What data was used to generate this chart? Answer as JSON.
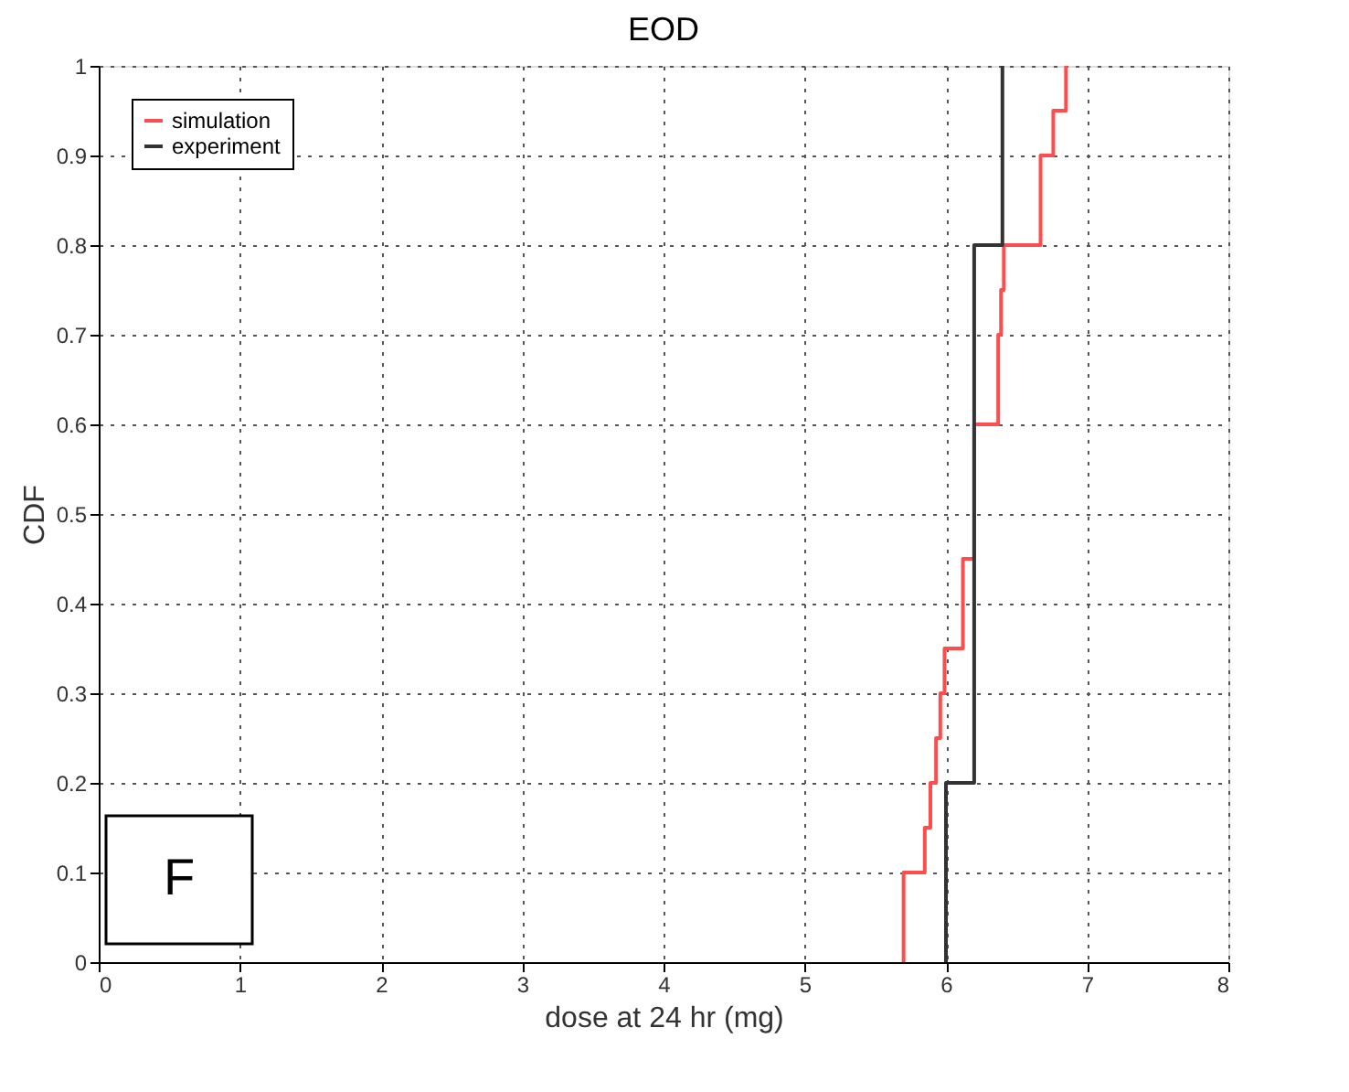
{
  "chart_data": {
    "type": "step",
    "title": "EOD",
    "xlabel": "dose at 24 hr (mg)",
    "ylabel": "CDF",
    "series": [
      {
        "name": "simulation",
        "color": "#ff4d4d",
        "x": [
          5.7,
          5.7,
          5.85,
          5.89,
          5.93,
          5.96,
          5.99,
          6.12,
          6.2,
          6.37,
          6.39,
          6.41,
          6.67,
          6.76,
          6.85
        ],
        "values": [
          0,
          0.1,
          0.15,
          0.2,
          0.25,
          0.3,
          0.35,
          0.45,
          0.6,
          0.7,
          0.75,
          0.8,
          0.9,
          0.95,
          1.0
        ]
      },
      {
        "name": "experiment",
        "color": "#333333",
        "x": [
          6.0,
          6.0,
          6.2,
          6.4
        ],
        "values": [
          0,
          0.2,
          0.8,
          1.0
        ]
      }
    ],
    "xlim": [
      0,
      8
    ],
    "xticks": [
      0,
      1,
      2,
      3,
      4,
      5,
      6,
      7,
      8
    ],
    "ylim": [
      0,
      1
    ],
    "yticks": [
      0,
      0.1,
      0.2,
      0.3,
      0.4,
      0.5,
      0.6,
      0.7,
      0.8,
      0.9,
      1
    ],
    "grid": true,
    "legend": "top left",
    "line_style": "solid",
    "marker": "none",
    "annotations": [
      "F"
    ]
  }
}
